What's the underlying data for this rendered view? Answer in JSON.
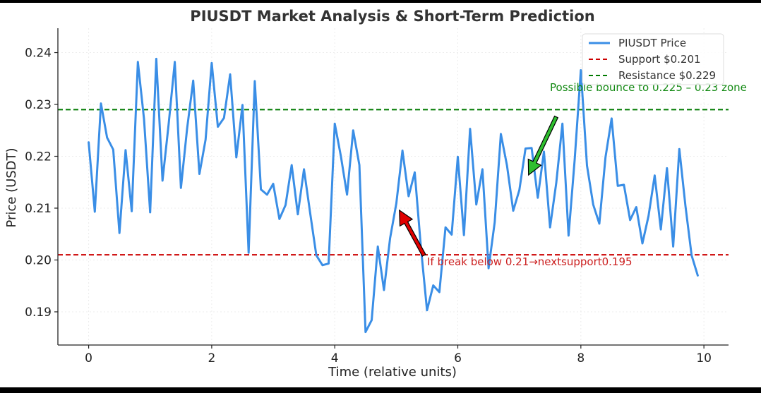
{
  "chart_data": {
    "type": "line",
    "title": "PIUSDT Market Analysis & Short-Term Prediction",
    "xlabel": "Time (relative units)",
    "ylabel": "Price (USDT)",
    "xlim": [
      -0.5,
      10.4
    ],
    "ylim": [
      0.1836,
      0.2447
    ],
    "x_ticks": [
      0,
      2,
      4,
      6,
      8,
      10
    ],
    "y_ticks": [
      0.19,
      0.2,
      0.21,
      0.22,
      0.23,
      0.24
    ],
    "grid": true,
    "legend_position": "top-right",
    "series": [
      {
        "name": "PIUSDT Price",
        "color": "#3a8ee6",
        "x": [
          0.0,
          0.1,
          0.2,
          0.3,
          0.4,
          0.5,
          0.6,
          0.7,
          0.8,
          0.9,
          1.0,
          1.1,
          1.2,
          1.3,
          1.4,
          1.5,
          1.6,
          1.7,
          1.8,
          1.9,
          2.0,
          2.1,
          2.2,
          2.3,
          2.4,
          2.5,
          2.6,
          2.7,
          2.8,
          2.9,
          3.0,
          3.1,
          3.2,
          3.3,
          3.4,
          3.5,
          3.6,
          3.7,
          3.8,
          3.9,
          4.0,
          4.1,
          4.2,
          4.3,
          4.4,
          4.5,
          4.6,
          4.7,
          4.8,
          4.9,
          5.0,
          5.1,
          5.2,
          5.3,
          5.4,
          5.5,
          5.6,
          5.7,
          5.8,
          5.9,
          6.0,
          6.1,
          6.2,
          6.3,
          6.4,
          6.5,
          6.6,
          6.7,
          6.8,
          6.9,
          7.0,
          7.1,
          7.2,
          7.3,
          7.4,
          7.5,
          7.6,
          7.7,
          7.8,
          7.9,
          8.0,
          8.1,
          8.2,
          8.3,
          8.4,
          8.5,
          8.6,
          8.7,
          8.8,
          8.9,
          9.0,
          9.1,
          9.2,
          9.3,
          9.4,
          9.5,
          9.6,
          9.7,
          9.8,
          9.9
        ],
        "y": [
          0.2227,
          0.2093,
          0.2302,
          0.2236,
          0.2213,
          0.2052,
          0.2212,
          0.2094,
          0.2382,
          0.2272,
          0.2092,
          0.2388,
          0.2153,
          0.2262,
          0.2382,
          0.2139,
          0.2253,
          0.2346,
          0.2166,
          0.2232,
          0.238,
          0.2257,
          0.2274,
          0.2358,
          0.2198,
          0.2299,
          0.2014,
          0.2345,
          0.2136,
          0.2126,
          0.2147,
          0.2079,
          0.2106,
          0.2183,
          0.2088,
          0.2175,
          0.2091,
          0.2009,
          0.199,
          0.1993,
          0.2263,
          0.22,
          0.2126,
          0.225,
          0.2183,
          0.1861,
          0.1884,
          0.2026,
          0.1942,
          0.2042,
          0.2109,
          0.2211,
          0.2123,
          0.2169,
          0.2025,
          0.1903,
          0.1951,
          0.1938,
          0.2063,
          0.2049,
          0.2199,
          0.2048,
          0.2253,
          0.2107,
          0.2175,
          0.1984,
          0.2073,
          0.2243,
          0.2182,
          0.2095,
          0.2135,
          0.2215,
          0.2216,
          0.212,
          0.2209,
          0.2063,
          0.2149,
          0.2263,
          0.2047,
          0.2194,
          0.2366,
          0.2182,
          0.2107,
          0.207,
          0.2198,
          0.2273,
          0.2143,
          0.2145,
          0.2077,
          0.2102,
          0.2032,
          0.2085,
          0.2163,
          0.2059,
          0.2177,
          0.2026,
          0.2214,
          0.2104,
          0.2009,
          0.197
        ]
      }
    ],
    "reference_lines": [
      {
        "name": "Support $0.201",
        "value": 0.201,
        "color": "#cc0000"
      },
      {
        "name": "Resistance $0.229",
        "value": 0.229,
        "color": "#007a00"
      }
    ],
    "annotations": [
      {
        "text": "Possible bounce to 0.225 – 0.23 zone",
        "color": "#138a13",
        "arrow_color": "#2fbf2f",
        "arrow_from": [
          7.6,
          0.2276
        ],
        "arrow_to": [
          7.15,
          0.2164
        ]
      },
      {
        "text": "If break below 0.21→nextsupport0.195",
        "color": "#cc2020",
        "arrow_color": "#e00000",
        "arrow_from": [
          5.45,
          0.2009
        ],
        "arrow_to": [
          5.05,
          0.2096
        ]
      }
    ]
  }
}
